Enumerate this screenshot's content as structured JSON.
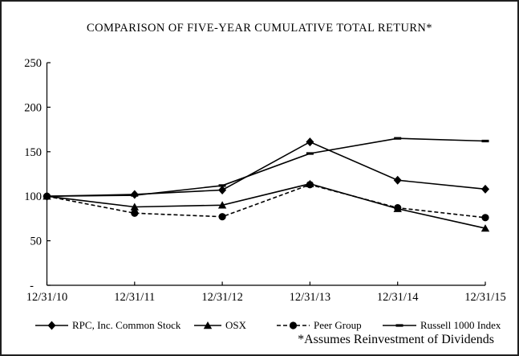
{
  "window": {
    "background": "#ffffff",
    "border_color": "#1f1f1f",
    "ink_color": "#000000"
  },
  "chart_data": {
    "type": "line",
    "title": "COMPARISON OF FIVE-YEAR CUMULATIVE TOTAL RETURN*",
    "footnote": "*Assumes Reinvestment of Dividends",
    "categories": [
      "12/31/10",
      "12/31/11",
      "12/31/12",
      "12/31/13",
      "12/31/14",
      "12/31/15"
    ],
    "y_axis": {
      "min": 0,
      "max": 250,
      "tick_interval": 50,
      "tick_values": [
        0,
        50,
        100,
        150,
        200,
        250
      ],
      "tick_labels": [
        "-",
        "50",
        "100",
        "150",
        "200",
        "250"
      ]
    },
    "grid": false,
    "legend_position": "bottom",
    "line_color": "#000000",
    "series": [
      {
        "name": "RPC, Inc. Common Stock",
        "marker": "diamond",
        "line_style": "solid",
        "values": [
          100,
          102,
          107,
          161,
          118,
          108
        ]
      },
      {
        "name": "OSX",
        "marker": "triangle",
        "line_style": "solid",
        "values": [
          100,
          88,
          90,
          114,
          86,
          64
        ]
      },
      {
        "name": "Peer Group",
        "marker": "circle",
        "line_style": "dashed",
        "values": [
          100,
          81,
          77,
          113,
          87,
          76
        ]
      },
      {
        "name": "Russell 1000 Index",
        "marker": "dash",
        "line_style": "solid",
        "values": [
          100,
          101,
          112,
          148,
          165,
          162
        ]
      }
    ]
  }
}
